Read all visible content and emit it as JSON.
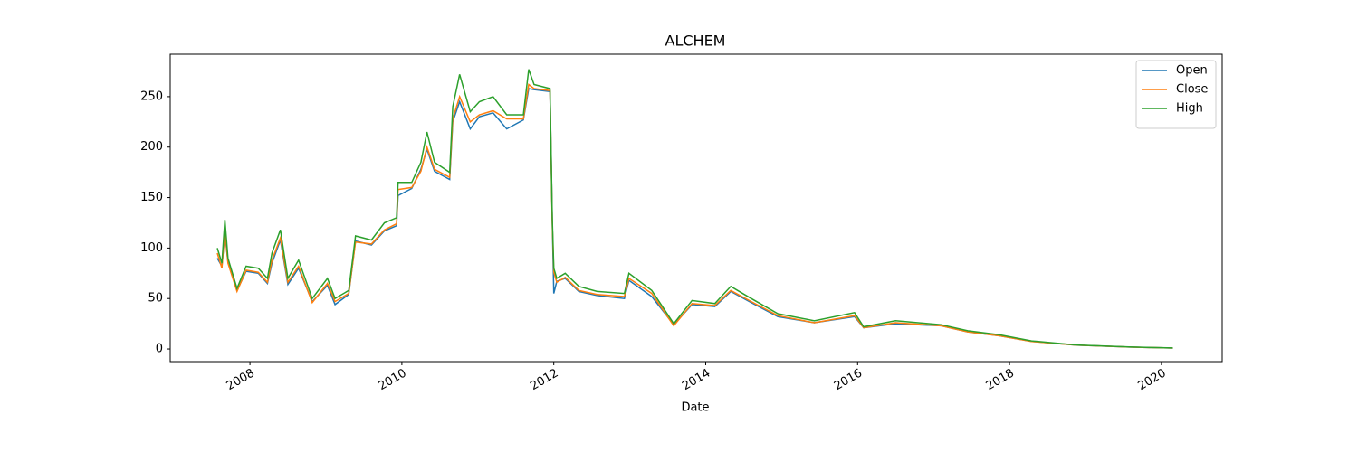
{
  "chart_data": {
    "type": "line",
    "title": "ALCHEM",
    "xlabel": "Date",
    "x": [
      2007.57,
      2007.63,
      2007.67,
      2007.71,
      2007.83,
      2007.95,
      2008.11,
      2008.23,
      2008.29,
      2008.4,
      2008.5,
      2008.64,
      2008.82,
      2009.02,
      2009.12,
      2009.3,
      2009.39,
      2009.6,
      2009.77,
      2009.93,
      2009.95,
      2010.13,
      2010.25,
      2010.33,
      2010.43,
      2010.63,
      2010.67,
      2010.76,
      2010.9,
      2011.02,
      2011.2,
      2011.38,
      2011.6,
      2011.67,
      2011.74,
      2011.95,
      2011.98,
      2012.0,
      2012.04,
      2012.15,
      2012.33,
      2012.57,
      2012.93,
      2012.99,
      2013.29,
      2013.58,
      2013.82,
      2014.12,
      2014.33,
      2014.6,
      2014.95,
      2015.43,
      2015.96,
      2016.08,
      2016.5,
      2017.1,
      2017.45,
      2017.87,
      2018.29,
      2018.88,
      2019.57,
      2020.15
    ],
    "series": [
      {
        "name": "Open",
        "color": "#1f77b4",
        "values": [
          90,
          82,
          115,
          86,
          58,
          77,
          75,
          65,
          85,
          108,
          64,
          80,
          47,
          63,
          44,
          54,
          107,
          103,
          117,
          122,
          152,
          159,
          178,
          198,
          176,
          168,
          225,
          245,
          218,
          230,
          234,
          218,
          227,
          258,
          257,
          255,
          128,
          55,
          67,
          70,
          57,
          53,
          50,
          68,
          52,
          24,
          44,
          42,
          57,
          46,
          32,
          26,
          32,
          21,
          25,
          23,
          17,
          13,
          7.6,
          3.8,
          1.9,
          0.9
        ]
      },
      {
        "name": "Close",
        "color": "#ff7f0e",
        "values": [
          95,
          80,
          118,
          85,
          57,
          78,
          76,
          66,
          88,
          110,
          66,
          82,
          46,
          65,
          47,
          55,
          106,
          104,
          118,
          124,
          158,
          160,
          176,
          200,
          178,
          170,
          228,
          250,
          225,
          232,
          236,
          228,
          228,
          262,
          258,
          256,
          125,
          76,
          66,
          71,
          58,
          54,
          52,
          70,
          55,
          23,
          45,
          43,
          58,
          47,
          33,
          26,
          33,
          21,
          26,
          23,
          17,
          13,
          7.5,
          3.8,
          1.9,
          0.9
        ]
      },
      {
        "name": "High",
        "color": "#2ca02c",
        "values": [
          100,
          85,
          128,
          90,
          60,
          82,
          80,
          70,
          95,
          118,
          70,
          88,
          50,
          70,
          50,
          58,
          112,
          108,
          125,
          130,
          165,
          165,
          185,
          215,
          185,
          175,
          240,
          272,
          235,
          245,
          250,
          232,
          232,
          277,
          262,
          258,
          130,
          80,
          70,
          75,
          62,
          57,
          55,
          75,
          58,
          25,
          48,
          45,
          62,
          50,
          35,
          28,
          36,
          22,
          28,
          24,
          18,
          14,
          8,
          4,
          2,
          1
        ]
      }
    ],
    "xlim": [
      2006.95,
      2020.8
    ],
    "xticks": [
      2008,
      2010,
      2012,
      2014,
      2016,
      2018,
      2020
    ],
    "ylim": [
      -12.5,
      292
    ],
    "yticks": [
      0,
      50,
      100,
      150,
      200,
      250
    ],
    "grid": false,
    "legend": "upper right"
  }
}
